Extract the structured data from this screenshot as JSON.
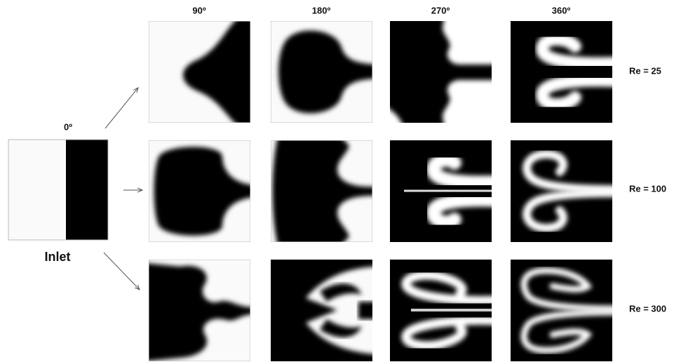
{
  "columns": [
    "90º",
    "180º",
    "270º",
    "360º"
  ],
  "inlet": {
    "angle": "0º",
    "label": "Inlet"
  },
  "rows": [
    "Re = 25",
    "Re = 100",
    "Re = 300"
  ]
}
